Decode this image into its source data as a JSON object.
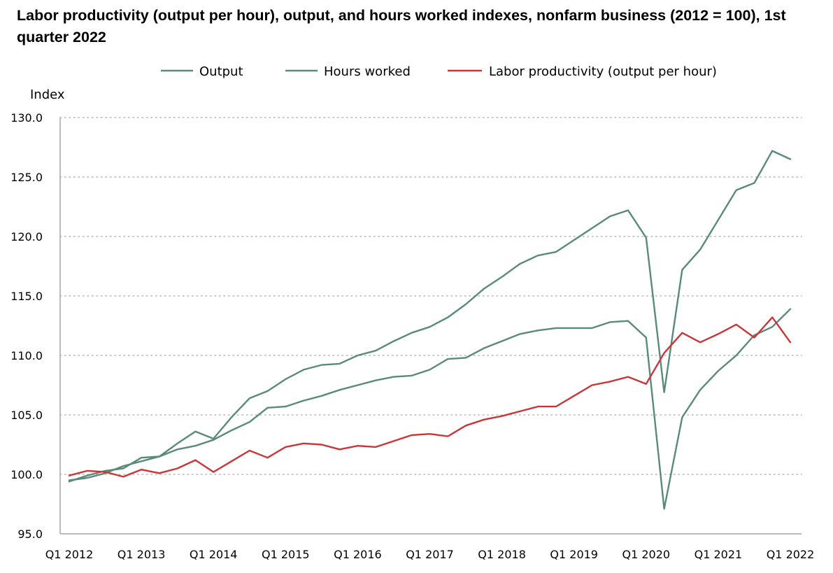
{
  "chart_data": {
    "type": "line",
    "title": "Labor productivity (output per hour), output, and hours worked indexes, nonfarm business (2012 = 100), 1st quarter 2022",
    "ylabel": "Index",
    "xlabel": "",
    "ylim": [
      95,
      130
    ],
    "yticks": [
      "95.0",
      "100.0",
      "105.0",
      "110.0",
      "115.0",
      "120.0",
      "125.0",
      "130.0"
    ],
    "xtick_labels": [
      "Q1 2012",
      "Q1 2013",
      "Q1 2014",
      "Q1 2015",
      "Q1 2016",
      "Q1 2017",
      "Q1 2018",
      "Q1 2019",
      "Q1 2020",
      "Q1 2021",
      "Q1 2022"
    ],
    "x": [
      "Q1 2012",
      "Q2 2012",
      "Q3 2012",
      "Q4 2012",
      "Q1 2013",
      "Q2 2013",
      "Q3 2013",
      "Q4 2013",
      "Q1 2014",
      "Q2 2014",
      "Q3 2014",
      "Q4 2014",
      "Q1 2015",
      "Q2 2015",
      "Q3 2015",
      "Q4 2015",
      "Q1 2016",
      "Q2 2016",
      "Q3 2016",
      "Q4 2016",
      "Q1 2017",
      "Q2 2017",
      "Q3 2017",
      "Q4 2017",
      "Q1 2018",
      "Q2 2018",
      "Q3 2018",
      "Q4 2018",
      "Q1 2019",
      "Q2 2019",
      "Q3 2019",
      "Q4 2019",
      "Q1 2020",
      "Q2 2020",
      "Q3 2020",
      "Q4 2020",
      "Q1 2021",
      "Q2 2021",
      "Q3 2021",
      "Q4 2021",
      "Q1 2022"
    ],
    "grid": true,
    "legend_position": "top",
    "series": [
      {
        "name": "Output",
        "color": "#5a8a78",
        "values": [
          99.4,
          99.9,
          100.3,
          100.5,
          101.4,
          101.5,
          102.6,
          103.6,
          103.0,
          104.8,
          106.4,
          107.0,
          108.0,
          108.8,
          109.2,
          109.3,
          110.0,
          110.4,
          111.2,
          111.9,
          112.4,
          113.2,
          114.3,
          115.6,
          116.6,
          117.7,
          118.4,
          118.7,
          119.7,
          120.7,
          121.7,
          122.2,
          119.9,
          106.9,
          117.2,
          118.9,
          121.4,
          123.9,
          124.5,
          127.2,
          126.5
        ]
      },
      {
        "name": "Hours worked",
        "color": "#5a8a78",
        "values": [
          99.5,
          99.7,
          100.1,
          100.7,
          101.1,
          101.5,
          102.1,
          102.4,
          102.9,
          103.7,
          104.4,
          105.6,
          105.7,
          106.2,
          106.6,
          107.1,
          107.5,
          107.9,
          108.2,
          108.3,
          108.8,
          109.7,
          109.8,
          110.6,
          111.2,
          111.8,
          112.1,
          112.3,
          112.3,
          112.3,
          112.8,
          112.9,
          111.5,
          97.1,
          104.8,
          107.1,
          108.7,
          110.0,
          111.7,
          112.4,
          113.9
        ]
      },
      {
        "name": "Labor productivity (output per hour)",
        "color": "#c8363a",
        "values": [
          99.9,
          100.3,
          100.2,
          99.8,
          100.4,
          100.1,
          100.5,
          101.2,
          100.2,
          101.1,
          102.0,
          101.4,
          102.3,
          102.6,
          102.5,
          102.1,
          102.4,
          102.3,
          102.8,
          103.3,
          103.4,
          103.2,
          104.1,
          104.6,
          104.9,
          105.3,
          105.7,
          105.7,
          106.6,
          107.5,
          107.8,
          108.2,
          107.6,
          110.2,
          111.9,
          111.1,
          111.8,
          112.6,
          111.5,
          113.2,
          111.1
        ]
      }
    ]
  }
}
